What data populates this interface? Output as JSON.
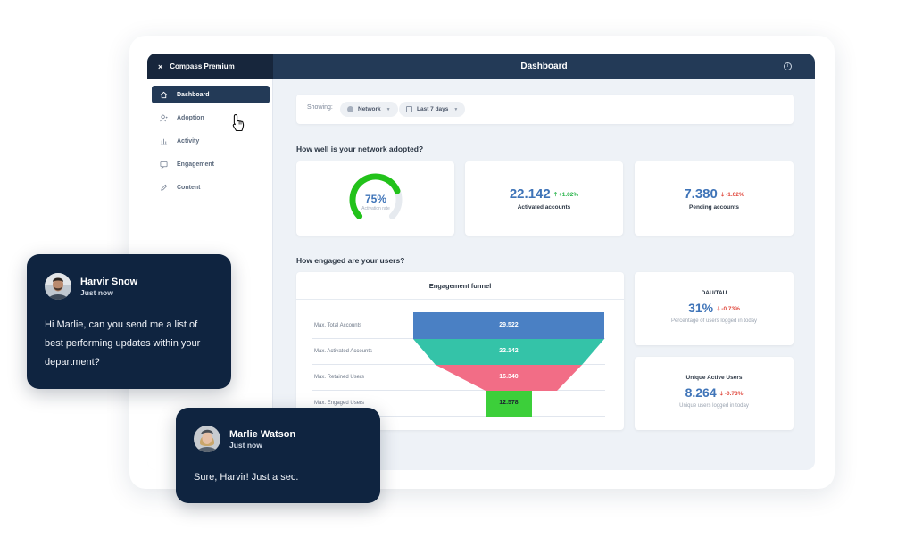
{
  "app": {
    "brand": "Compass Premium",
    "close_glyph": "×",
    "title": "Dashboard",
    "info_glyph": "i"
  },
  "sidebar": {
    "items": [
      {
        "label": "Dashboard",
        "icon": "home-icon",
        "active": true
      },
      {
        "label": "Adoption",
        "icon": "user-add-icon",
        "active": false
      },
      {
        "label": "Activity",
        "icon": "bar-chart-icon",
        "active": false
      },
      {
        "label": "Engagement",
        "icon": "message-icon",
        "active": false
      },
      {
        "label": "Content",
        "icon": "pencil-icon",
        "active": false
      }
    ]
  },
  "filters": {
    "label": "Showing:",
    "network": "Network",
    "period": "Last 7 days"
  },
  "adoption": {
    "title": "How well is your network adopted?",
    "gauge": {
      "value": "75%",
      "label": "Activation rate",
      "fraction": 0.75
    },
    "activated": {
      "value": "22.142",
      "delta": "+1.02%",
      "delta_dir": "up",
      "label": "Activated accounts"
    },
    "pending": {
      "value": "7.380",
      "delta": "-1.02%",
      "delta_dir": "down",
      "label": "Pending accounts"
    }
  },
  "engagement": {
    "title": "How engaged are your users?",
    "funnel": {
      "title": "Engagement funnel",
      "stages": [
        {
          "label": "Max. Total Accounts",
          "value": "29.522",
          "color": "#4a80c4"
        },
        {
          "label": "Max. Activated Accounts",
          "value": "22.142",
          "color": "#34c3a8"
        },
        {
          "label": "Max. Retained Users",
          "value": "16.340",
          "color": "#f26d86"
        },
        {
          "label": "Max. Engaged Users",
          "value": "12.578",
          "color": "#3ccf3a"
        }
      ]
    },
    "dau": {
      "title": "DAU/TAU",
      "value": "31%",
      "delta": "-0.73%",
      "delta_dir": "down",
      "sub": "Percentage of users logged in today"
    },
    "uau": {
      "title": "Unique Active Users",
      "value": "8.264",
      "delta": "-0.73%",
      "delta_dir": "down",
      "sub": "Unique users logged in today"
    }
  },
  "chats": [
    {
      "name": "Harvir Snow",
      "time": "Just now",
      "message": [
        "Hi Marlie, can you send me a list of",
        "best performing updates within your",
        "department?"
      ]
    },
    {
      "name": "Marlie Watson",
      "time": "Just now",
      "message": [
        "Sure, Harvir! Just a sec."
      ]
    }
  ],
  "colors": {
    "sidebar_dark": "#17263c",
    "topbar": "#233a57",
    "accent_blue": "#3f74b8",
    "gauge_green": "#22c21a",
    "chat_bg": "#0f2440"
  }
}
